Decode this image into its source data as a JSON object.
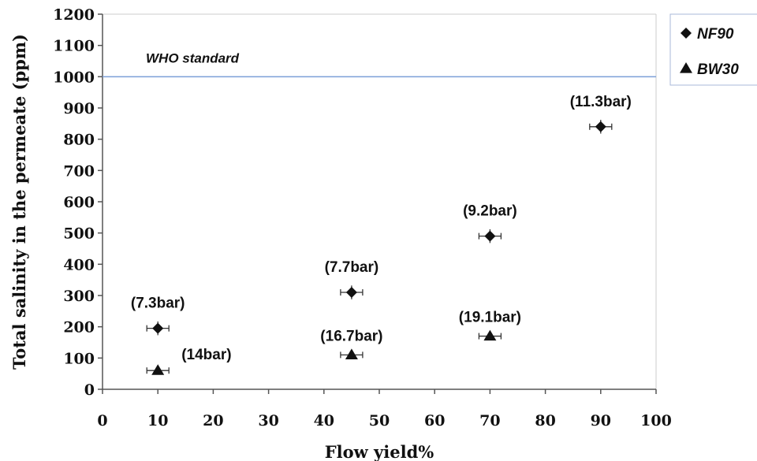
{
  "chart_data": {
    "type": "scatter",
    "xlabel": "Flow yield%",
    "ylabel": "Total salinity in the permeate (ppm)",
    "xlim": [
      0,
      100
    ],
    "ylim": [
      0,
      1200
    ],
    "x_ticks": [
      "0",
      "10",
      "20",
      "30",
      "40",
      "50",
      "60",
      "70",
      "80",
      "90",
      "100"
    ],
    "y_ticks": [
      "0",
      "100",
      "200",
      "300",
      "400",
      "500",
      "600",
      "700",
      "800",
      "900",
      "1000",
      "1100",
      "1200"
    ],
    "grid": false,
    "legend_position": "right, outside plot area",
    "reference_line": {
      "label": "WHO standard",
      "y": 1000,
      "color": "#7b9fd8"
    },
    "series": [
      {
        "name": "NF90",
        "marker": "diamond",
        "points": [
          {
            "x": 10,
            "y": 195,
            "label": "(7.3bar)"
          },
          {
            "x": 45,
            "y": 310,
            "label": "(7.7bar)"
          },
          {
            "x": 70,
            "y": 490,
            "label": "(9.2bar)"
          },
          {
            "x": 90,
            "y": 840,
            "label": "(11.3bar)"
          }
        ]
      },
      {
        "name": "BW30",
        "marker": "triangle",
        "points": [
          {
            "x": 10,
            "y": 60,
            "label": "(14bar)"
          },
          {
            "x": 45,
            "y": 110,
            "label": "(16.7bar)"
          },
          {
            "x": 70,
            "y": 170,
            "label": "(19.1bar)"
          }
        ]
      }
    ]
  }
}
